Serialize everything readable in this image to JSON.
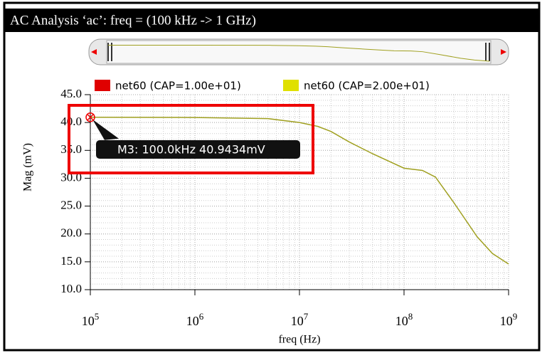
{
  "window_title": "AC Analysis ‘ac’: freq = (100 kHz -> 1 GHz)",
  "chart_data": {
    "type": "line",
    "x_label": "freq (Hz)",
    "y_label": "Mag (mV)",
    "x": [
      100000,
      1000000,
      5000000,
      10000000,
      15000000,
      20000000,
      30000000,
      50000000,
      100000000,
      150000000,
      200000000,
      300000000,
      500000000,
      700000000,
      1000000000
    ],
    "series": [
      {
        "name": "net60 (CAP=1.00e+01)",
        "color": "#e00000",
        "values": [
          null,
          null,
          null,
          null,
          null,
          null,
          null,
          null,
          null,
          null,
          null,
          null,
          null,
          null,
          null
        ]
      },
      {
        "name": "net60 (CAP=2.00e+01)",
        "color": "#e0e000",
        "line_color": "#a0a020",
        "values": [
          40.94,
          40.9,
          40.7,
          40.0,
          39.3,
          38.4,
          36.5,
          34.4,
          31.8,
          31.4,
          30.2,
          25.6,
          19.5,
          16.5,
          14.6
        ]
      }
    ],
    "xscale": "log",
    "xlim": [
      100000,
      1000000000
    ],
    "xticks": [
      {
        "value": 100000,
        "label": "10",
        "sup": "5"
      },
      {
        "value": 1000000,
        "label": "10",
        "sup": "6"
      },
      {
        "value": 10000000,
        "label": "10",
        "sup": "7"
      },
      {
        "value": 100000000,
        "label": "10",
        "sup": "8"
      },
      {
        "value": 1000000000,
        "label": "10",
        "sup": "9"
      }
    ],
    "ylim": [
      10,
      45
    ],
    "yticks": [
      {
        "value": 10,
        "label": "10.0"
      },
      {
        "value": 15,
        "label": "15.0"
      },
      {
        "value": 20,
        "label": "20.0"
      },
      {
        "value": 25,
        "label": "25.0"
      },
      {
        "value": 30,
        "label": "30.0"
      },
      {
        "value": 35,
        "label": "35.0"
      },
      {
        "value": 40,
        "label": "40.0"
      },
      {
        "value": 45,
        "label": "45.0"
      }
    ],
    "grid": true,
    "marker": {
      "x": 100000,
      "y": 40.9434,
      "label": "M3: 100.0kHz 40.9434mV"
    }
  }
}
